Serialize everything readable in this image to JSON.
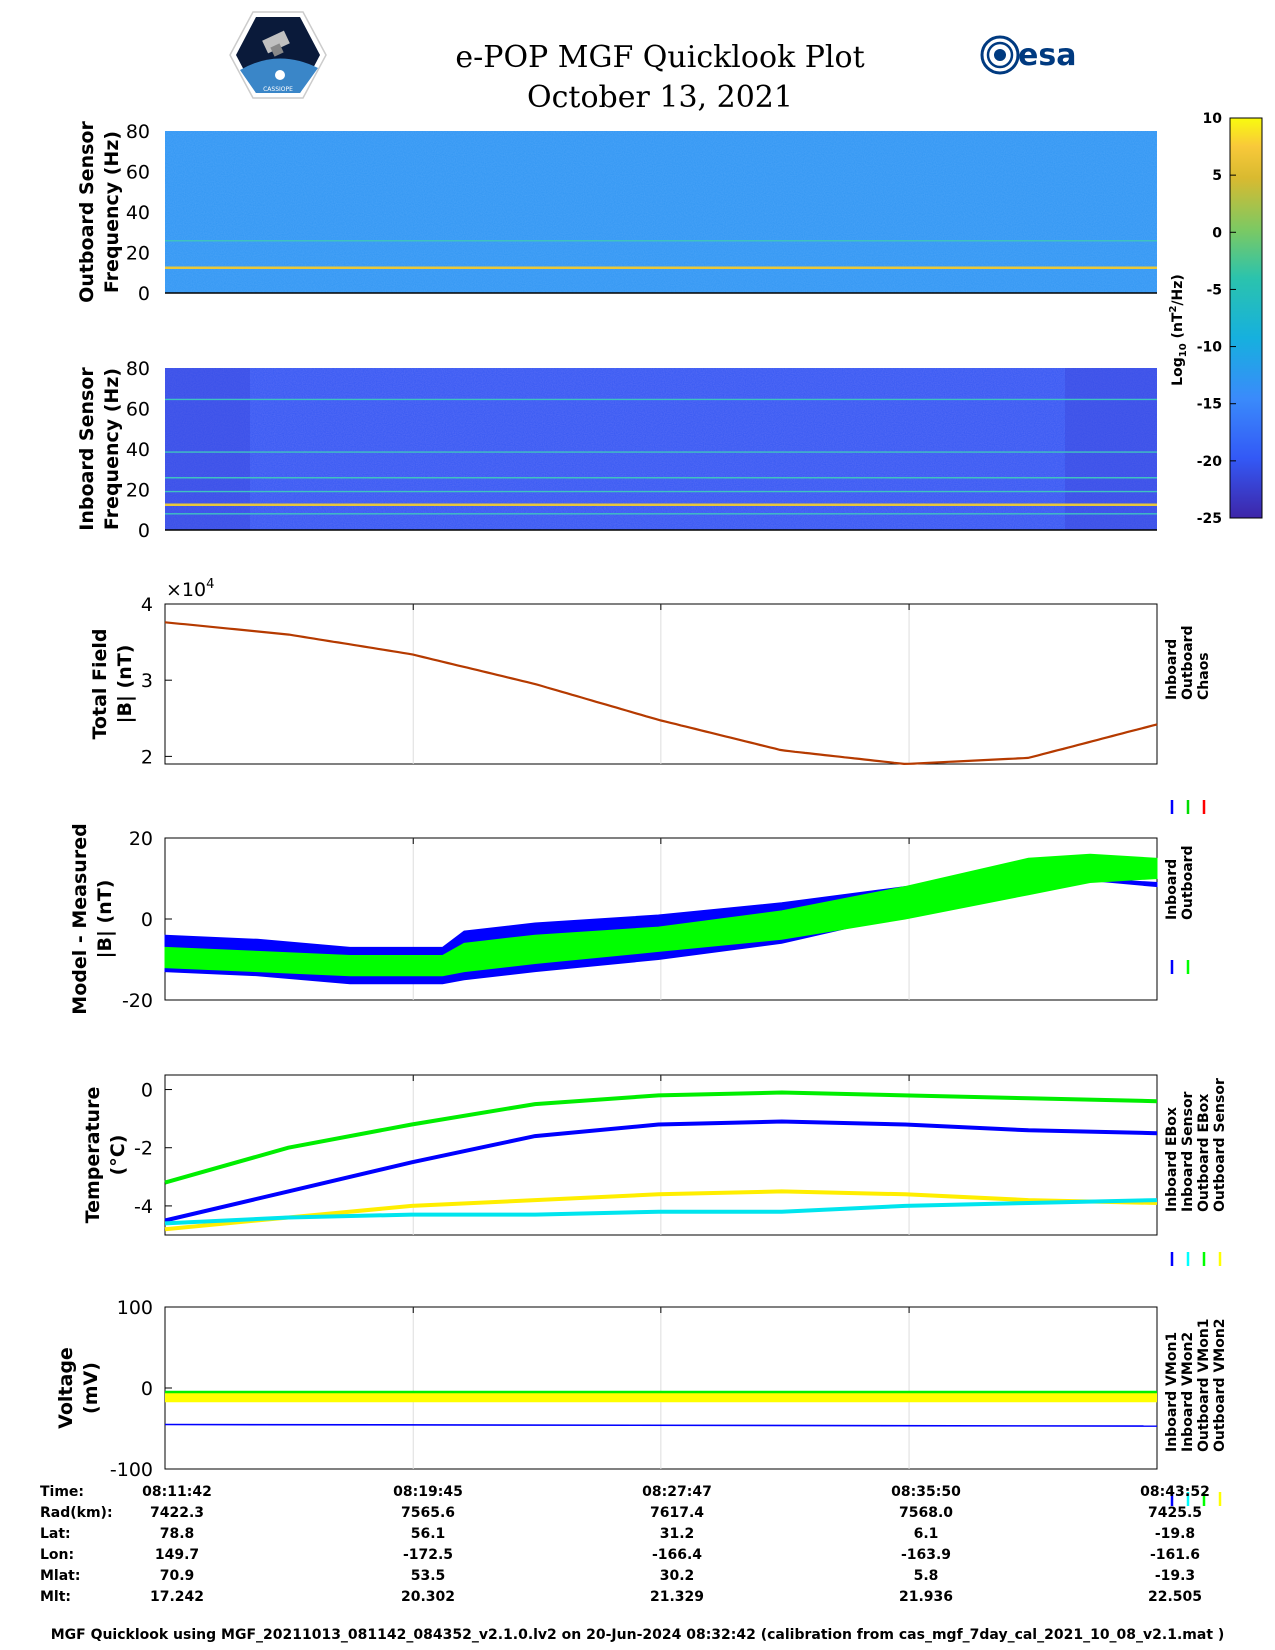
{
  "header": {
    "title": "e-POP MGF Quicklook Plot",
    "date": "October 13, 2021",
    "mission_logo": "CASSIOPE",
    "agency_logo": "esa"
  },
  "colorbar": {
    "label": "Log10 (nT^2/Hz)",
    "ticks": [
      10,
      5,
      0,
      -5,
      -10,
      -15,
      -20,
      -25
    ],
    "range": [
      -25,
      10
    ]
  },
  "chart_data": [
    {
      "type": "heatmap",
      "ylabel": "Outboard Sensor Frequency (Hz)",
      "ylim": [
        0,
        80
      ],
      "yticks": [
        0,
        20,
        40,
        60,
        80
      ],
      "background_log10": -13,
      "lines_hz": [
        12.5,
        25.8
      ]
    },
    {
      "type": "heatmap",
      "ylabel": "Inboard Sensor Frequency (Hz)",
      "ylim": [
        0,
        80
      ],
      "yticks": [
        0,
        20,
        40,
        60,
        80
      ],
      "background_log10": -20,
      "lines_hz": [
        8,
        12.5,
        19,
        25.8,
        38.5,
        64.5
      ]
    },
    {
      "type": "line",
      "ylabel": "Total Field |B| (nT)",
      "exponent_label": "×10^4",
      "ylim": [
        1.9,
        4.0
      ],
      "yticks": [
        2,
        3,
        4
      ],
      "xlim_min": [
        0,
        32.17
      ],
      "legend": [
        "Inboard",
        "Outboard",
        "Chaos"
      ],
      "legend_colors": [
        "#0000ff",
        "#00dd00",
        "#ff0000"
      ],
      "x": [
        0,
        4,
        8,
        12,
        16,
        20,
        24,
        28,
        32.17
      ],
      "values": [
        3.76,
        3.6,
        3.34,
        2.95,
        2.48,
        2.08,
        1.9,
        1.98,
        2.42
      ]
    },
    {
      "type": "area",
      "ylabel": "Model - Measured |B| (nT)",
      "ylim": [
        -20,
        20
      ],
      "yticks": [
        -20,
        0,
        20
      ],
      "legend": [
        "Inboard",
        "Outboard"
      ],
      "legend_colors": [
        "#0000ff",
        "#00ff00"
      ],
      "x": [
        0,
        3,
        6,
        9,
        9.7,
        12,
        16,
        20,
        24,
        28,
        30,
        32.17
      ],
      "series": [
        {
          "name": "Inboard",
          "low": [
            -13,
            -14,
            -16,
            -16,
            -15,
            -13,
            -10,
            -6,
            1,
            9,
            9.5,
            8
          ],
          "high": [
            -4,
            -5,
            -7,
            -7,
            -3,
            -1,
            1,
            4,
            8,
            10,
            10,
            9
          ]
        },
        {
          "name": "Outboard",
          "low": [
            -12,
            -13,
            -14,
            -14,
            -13,
            -11,
            -8,
            -5,
            0,
            6,
            9,
            10
          ],
          "high": [
            -7,
            -8,
            -9,
            -9,
            -6,
            -4,
            -2,
            2,
            8,
            15,
            16,
            15
          ]
        }
      ]
    },
    {
      "type": "line",
      "ylabel": "Temperature (°C)",
      "ylim": [
        -5,
        0.5
      ],
      "yticks": [
        -4,
        -2,
        0
      ],
      "legend": [
        "Inboard EBox",
        "Inboard Sensor",
        "Outboard EBox",
        "Outboard Sensor"
      ],
      "legend_colors": [
        "#0000ff",
        "#00ffff",
        "#00ff00",
        "#ffff00"
      ],
      "x": [
        0,
        4,
        8,
        12,
        16,
        20,
        24,
        28,
        32.17
      ],
      "series": [
        {
          "name": "Outboard EBox",
          "values": [
            -3.2,
            -2.0,
            -1.2,
            -0.5,
            -0.2,
            -0.1,
            -0.2,
            -0.3,
            -0.4
          ]
        },
        {
          "name": "Inboard EBox",
          "values": [
            -4.5,
            -3.5,
            -2.5,
            -1.6,
            -1.2,
            -1.1,
            -1.2,
            -1.4,
            -1.5
          ]
        },
        {
          "name": "Outboard Sensor",
          "values": [
            -4.8,
            -4.4,
            -4.0,
            -3.8,
            -3.6,
            -3.5,
            -3.6,
            -3.8,
            -3.9
          ]
        },
        {
          "name": "Inboard Sensor",
          "values": [
            -4.6,
            -4.4,
            -4.3,
            -4.3,
            -4.2,
            -4.2,
            -4.0,
            -3.9,
            -3.8
          ]
        }
      ]
    },
    {
      "type": "line",
      "ylabel": "Voltage (mV)",
      "ylim": [
        -100,
        100
      ],
      "yticks": [
        -100,
        0,
        100
      ],
      "legend": [
        "Inboard VMon1",
        "Inboard VMon2",
        "Outboard VMon1",
        "Outboard VMon2"
      ],
      "legend_colors": [
        "#0000ff",
        "#00ffff",
        "#00ff00",
        "#ffff00"
      ],
      "x": [
        0,
        32.17
      ],
      "series": [
        {
          "name": "Outboard VMon1",
          "values": [
            -7,
            -7
          ]
        },
        {
          "name": "Outboard VMon2",
          "values": [
            -12,
            -12
          ]
        },
        {
          "name": "Inboard VMon1",
          "values": [
            -45,
            -47
          ]
        }
      ]
    }
  ],
  "orbit_table": {
    "labels": [
      "Time:",
      "Rad(km):",
      "Lat:",
      "Lon:",
      "Mlat:",
      "Mlt:"
    ],
    "columns": [
      [
        "08:11:42",
        "7422.3",
        "78.8",
        "149.7",
        "70.9",
        "17.242"
      ],
      [
        "08:19:45",
        "7565.6",
        "56.1",
        "-172.5",
        "53.5",
        "20.302"
      ],
      [
        "08:27:47",
        "7617.4",
        "31.2",
        "-166.4",
        "30.2",
        "21.329"
      ],
      [
        "08:35:50",
        "7568.0",
        "6.1",
        "-163.9",
        "5.8",
        "21.936"
      ],
      [
        "08:43:52",
        "7425.5",
        "-19.8",
        "-161.6",
        "-19.3",
        "22.505"
      ]
    ]
  },
  "footer": "MGF Quicklook using MGF_20211013_081142_084352_v2.1.0.lv2 on 20-Jun-2024 08:32:42 (calibration from cas_mgf_7day_cal_2021_10_08_v2.1.mat )"
}
